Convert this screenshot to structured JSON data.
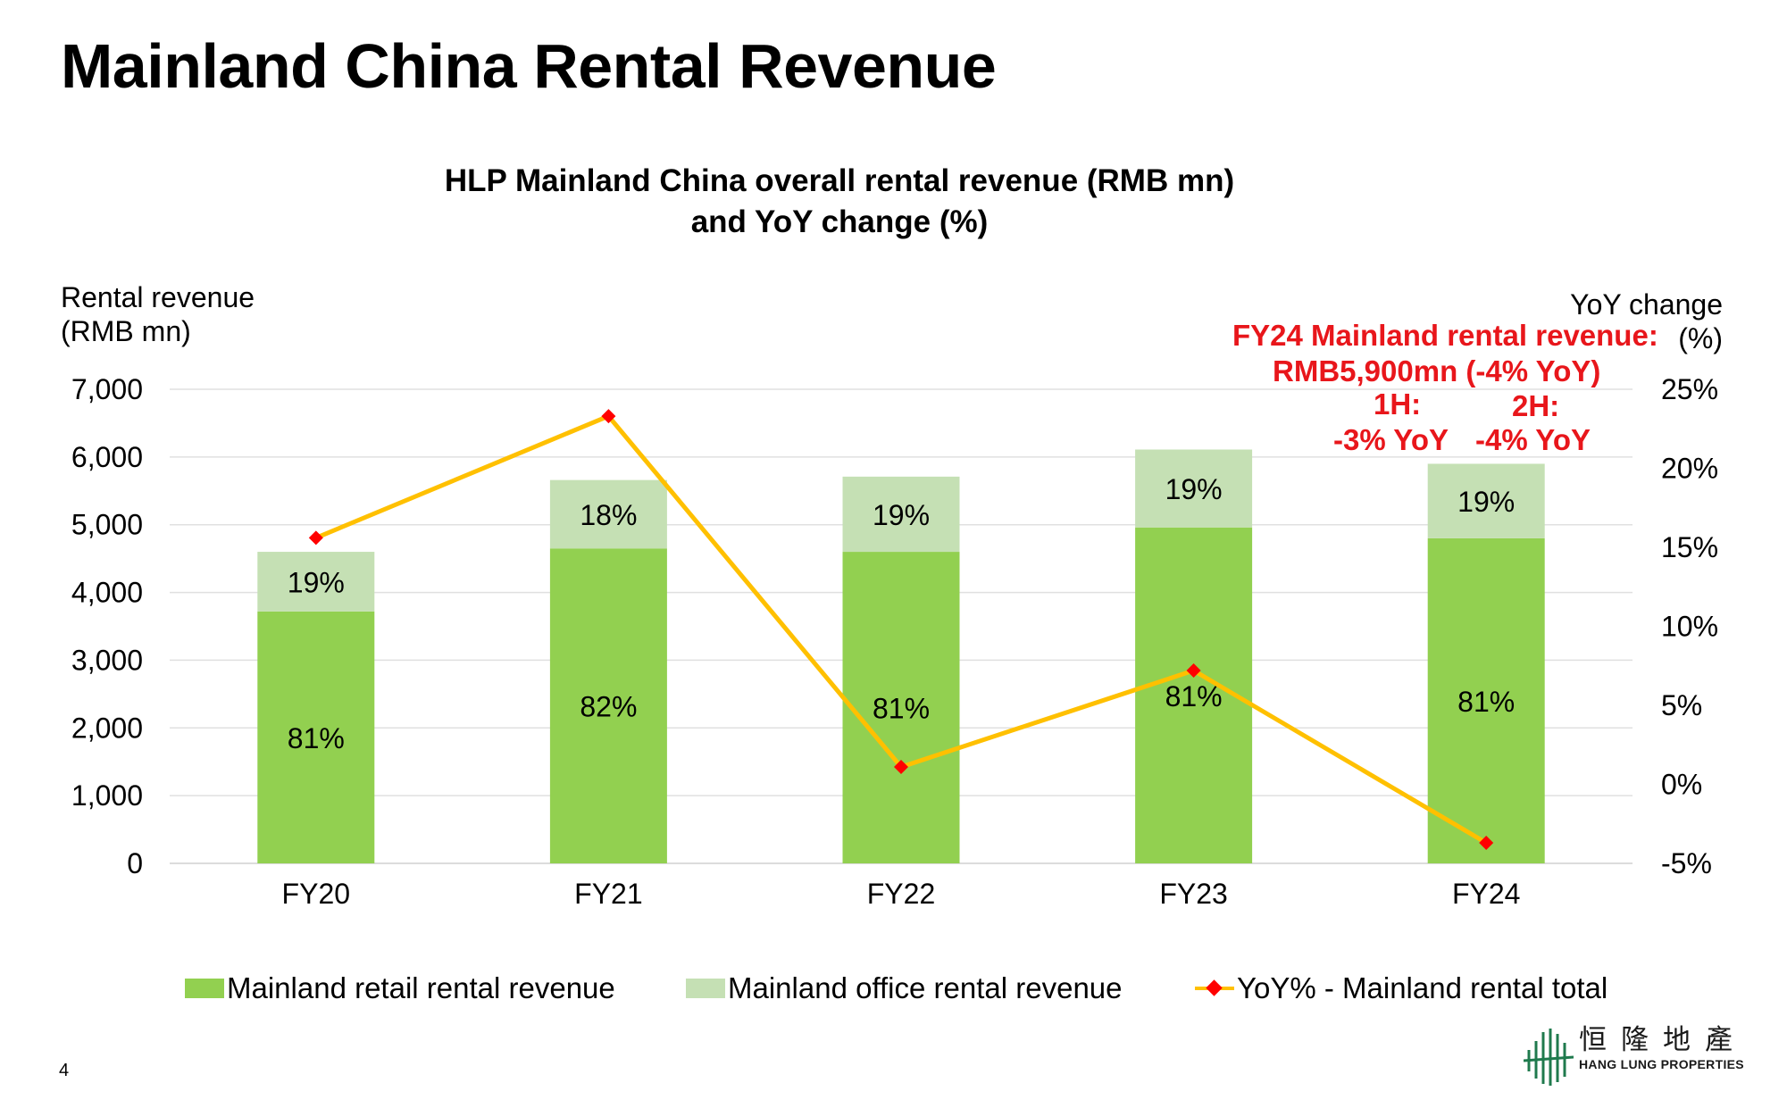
{
  "page": {
    "title": "Mainland China Rental Revenue",
    "page_number": "4"
  },
  "chart_data": {
    "type": "bar",
    "stacked": true,
    "title_line1": "HLP Mainland China overall rental revenue (RMB mn)",
    "title_line2": "and YoY change (%)",
    "ylabel_line1": "Rental revenue",
    "ylabel_line2": "(RMB mn)",
    "y2label_line1": "YoY change",
    "y2label_line2": "(%)",
    "categories": [
      "FY20",
      "FY21",
      "FY22",
      "FY23",
      "FY24"
    ],
    "ylim": [
      0,
      7000
    ],
    "y_ticks": [
      "0",
      "1,000",
      "2,000",
      "3,000",
      "4,000",
      "5,000",
      "6,000",
      "7,000"
    ],
    "y2lim": [
      -5,
      25
    ],
    "y2_ticks": [
      "-5%",
      "0%",
      "5%",
      "10%",
      "15%",
      "20%",
      "25%"
    ],
    "series": [
      {
        "name": "Mainland retail rental revenue",
        "type": "bar",
        "color": "#92d050",
        "values": [
          3720,
          4650,
          4600,
          4960,
          4800
        ],
        "labels": [
          "81%",
          "82%",
          "81%",
          "81%",
          "81%"
        ]
      },
      {
        "name": "Mainland office rental revenue",
        "type": "bar",
        "color": "#c5e0b4",
        "values": [
          880,
          1010,
          1110,
          1150,
          1100
        ],
        "labels": [
          "19%",
          "18%",
          "19%",
          "19%",
          "19%"
        ]
      },
      {
        "name": "YoY% - Mainland rental total",
        "type": "line",
        "axis": "right",
        "color": "#ffc000",
        "marker_color": "#ff0000",
        "values": [
          15.6,
          23.3,
          1.1,
          7.2,
          -3.7
        ]
      }
    ],
    "grid": true,
    "legend_position": "bottom",
    "annotations": {
      "line1": "FY24 Mainland rental revenue:",
      "line2": "RMB5,900mn  (-4% YoY)",
      "h1_label": "1H:",
      "h1_value": "-3% YoY",
      "h2_label": "2H:",
      "h2_value": "-4% YoY",
      "color": "#e8161b"
    }
  },
  "logo": {
    "chinese": "恒隆地產",
    "english": "HANG LUNG PROPERTIES"
  }
}
